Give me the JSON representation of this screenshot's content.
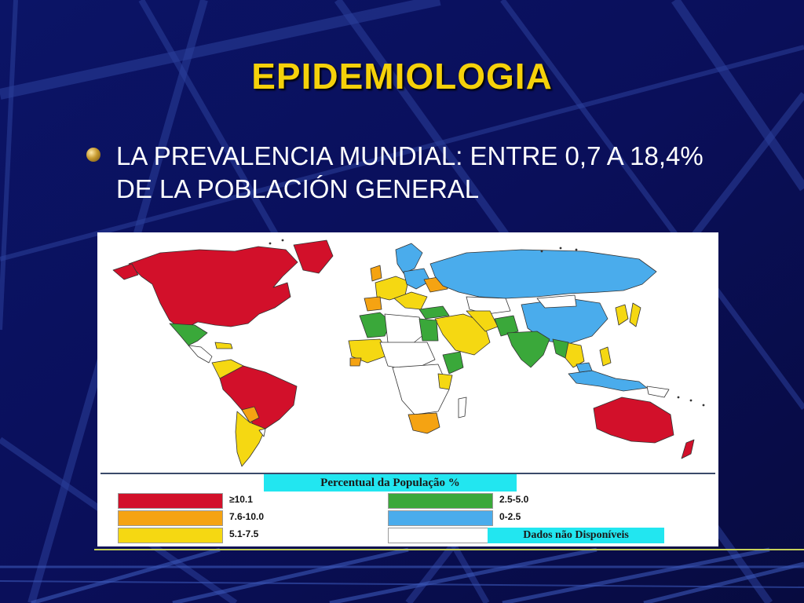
{
  "slide": {
    "title": "EPIDEMIOLOGIA",
    "bullet": "LA PREVALENCIA MUNDIAL: ENTRE 0,7 A 18,4% DE LA POBLACIÓN GENERAL"
  },
  "colors": {
    "background": "#0a0f5a",
    "title": "#f5d10a",
    "text": "#ffffff",
    "category_10_plus": "#d2102a",
    "category_7_6_10": "#f5a312",
    "category_5_1_7_5": "#f5d812",
    "category_2_5_5": "#3aa83a",
    "category_0_2_5": "#4aacec",
    "category_na": "#ffffff",
    "legend_highlight": "#22e6f0"
  },
  "legend": {
    "title": "Percentual da População %",
    "items": [
      {
        "label": "≥10.1",
        "color": "#d2102a"
      },
      {
        "label": "7.6-10.0",
        "color": "#f5a312"
      },
      {
        "label": "5.1-7.5",
        "color": "#f5d812"
      },
      {
        "label": "2.5-5.0",
        "color": "#3aa83a"
      },
      {
        "label": "0-2.5",
        "color": "#4aacec"
      },
      {
        "label": "",
        "color": "#ffffff"
      }
    ],
    "no_data_label": "Dados não Disponíveis"
  }
}
